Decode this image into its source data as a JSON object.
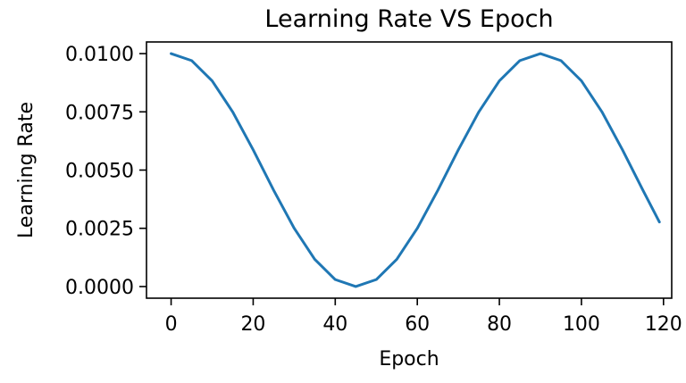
{
  "chart_data": {
    "type": "line",
    "title": "Learning Rate VS Epoch",
    "xlabel": "Epoch",
    "ylabel": "Learning Rate",
    "xlim": [
      -6,
      122
    ],
    "ylim": [
      -0.0005,
      0.0105
    ],
    "xticks": [
      0,
      20,
      40,
      60,
      80,
      100,
      120
    ],
    "xtick_labels": [
      "0",
      "20",
      "40",
      "60",
      "80",
      "100",
      "120"
    ],
    "yticks": [
      0.0,
      0.0025,
      0.005,
      0.0075,
      0.01
    ],
    "ytick_labels": [
      "0.0000",
      "0.0025",
      "0.0050",
      "0.0075",
      "0.0100"
    ],
    "grid": false,
    "series": [
      {
        "color": "#1f77b4",
        "x": [
          0,
          5,
          10,
          15,
          20,
          25,
          30,
          35,
          40,
          45,
          50,
          55,
          60,
          65,
          70,
          75,
          80,
          85,
          90,
          95,
          100,
          105,
          110,
          115,
          119
        ],
        "y": [
          0.01,
          0.0097,
          0.00883,
          0.0075,
          0.00587,
          0.00413,
          0.0025,
          0.00117,
          0.0003,
          0.0,
          0.0003,
          0.00117,
          0.0025,
          0.00413,
          0.00587,
          0.0075,
          0.00883,
          0.0097,
          0.01,
          0.0097,
          0.00883,
          0.0075,
          0.00587,
          0.00413,
          0.00277
        ]
      }
    ]
  }
}
